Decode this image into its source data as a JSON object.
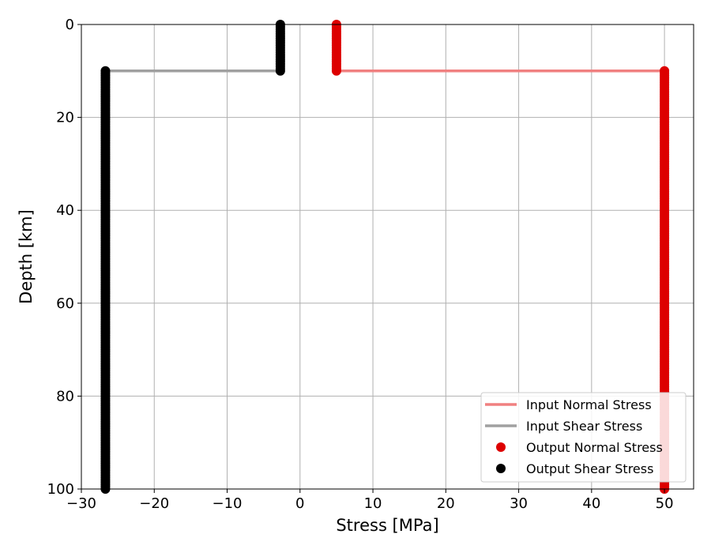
{
  "chart_data": {
    "type": "line",
    "xlabel": "Stress [MPa]",
    "ylabel": "Depth [km]",
    "xlim": [
      -30,
      54
    ],
    "ylim": [
      100,
      0
    ],
    "y_inverted": true,
    "grid": true,
    "xticks": [
      -30,
      -20,
      -10,
      0,
      10,
      20,
      30,
      40,
      50
    ],
    "yticks": [
      0,
      20,
      40,
      60,
      80,
      100
    ],
    "legend_position": "lower-right",
    "series": [
      {
        "name": "Input Normal Stress",
        "kind": "line",
        "color": "#f08080",
        "points": [
          [
            5,
            0
          ],
          [
            5,
            10
          ],
          [
            50,
            10
          ],
          [
            50,
            100
          ]
        ]
      },
      {
        "name": "Input Shear Stress",
        "kind": "line",
        "color": "#a0a0a0",
        "points": [
          [
            -2.7,
            0
          ],
          [
            -2.7,
            10
          ],
          [
            -26.7,
            10
          ],
          [
            -26.7,
            100
          ]
        ]
      },
      {
        "name": "Output Normal Stress",
        "kind": "scatter",
        "color": "#dd0000",
        "segments": [
          {
            "x": 5,
            "depth_from": 0,
            "depth_to": 10
          },
          {
            "x": 50,
            "depth_from": 10,
            "depth_to": 100
          }
        ]
      },
      {
        "name": "Output Shear Stress",
        "kind": "scatter",
        "color": "#000000",
        "segments": [
          {
            "x": -2.7,
            "depth_from": 0,
            "depth_to": 10
          },
          {
            "x": -26.7,
            "depth_from": 10,
            "depth_to": 100
          }
        ]
      }
    ]
  }
}
